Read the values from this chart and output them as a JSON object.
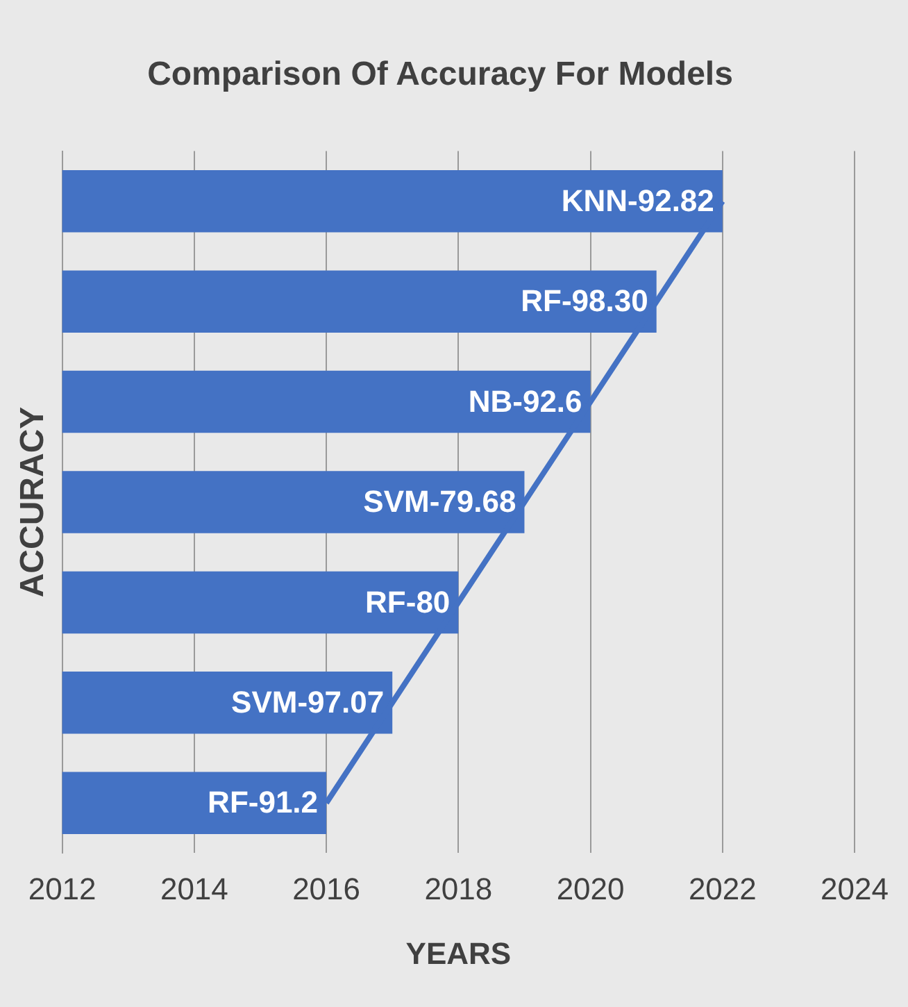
{
  "chart_data": {
    "type": "bar",
    "orientation": "horizontal",
    "title": "Comparison Of Accuracy For Models",
    "xlabel": "YEARS",
    "ylabel": "ACCURACY",
    "categories": [
      null,
      null,
      null,
      null,
      null,
      null,
      null
    ],
    "series": [
      {
        "color": "#4472c4",
        "values": [
          2022,
          2021,
          2020,
          2019,
          2018,
          2017,
          2016
        ],
        "value_labels": [
          "KNN-92.82",
          "RF-98.30",
          "NB-92.6",
          "SVM-79.68",
          "RF-80",
          "SVM-97.07",
          "RF-91.2"
        ]
      },
      {
        "type": "line",
        "color": "#4472c4",
        "values": [
          2022,
          2021,
          2020,
          2019,
          2018,
          2017,
          2016
        ]
      }
    ],
    "xlim": [
      2012,
      2024
    ],
    "xticks": [
      2012,
      2014,
      2016,
      2018,
      2020,
      2022,
      2024
    ],
    "grid": "x",
    "legend": false,
    "marker": "none"
  }
}
